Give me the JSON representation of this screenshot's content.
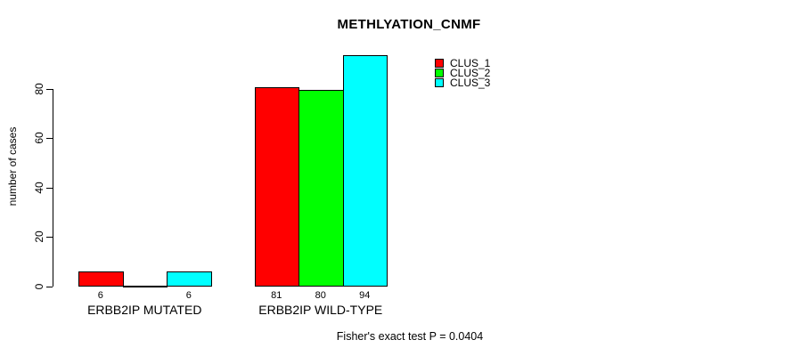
{
  "chart_data": {
    "type": "bar",
    "title": "METHLYATION_CNMF",
    "ylabel": "number of cases",
    "xlabel": "",
    "categories": [
      "ERBB2IP MUTATED",
      "ERBB2IP WILD-TYPE"
    ],
    "series": [
      {
        "name": "CLUS_1",
        "color": "#ff0000",
        "values": [
          6,
          81
        ]
      },
      {
        "name": "CLUS_2",
        "color": "#00ff00",
        "values": [
          0,
          80
        ]
      },
      {
        "name": "CLUS_3",
        "color": "#00ffff",
        "values": [
          6,
          94
        ]
      }
    ],
    "bar_value_labels": [
      [
        "6",
        "",
        "6"
      ],
      [
        "81",
        "80",
        "94"
      ]
    ],
    "yticks": [
      0,
      20,
      40,
      60,
      80
    ],
    "ylim": [
      0,
      97
    ],
    "grid": false,
    "legend_position": "top-right",
    "legend_entries": [
      "CLUS_1",
      "CLUS_2",
      "CLUS_3"
    ],
    "annotation": "Fisher's exact test P = 0.0404",
    "bar_border_color": "#000000",
    "background_color": "#ffffff"
  }
}
